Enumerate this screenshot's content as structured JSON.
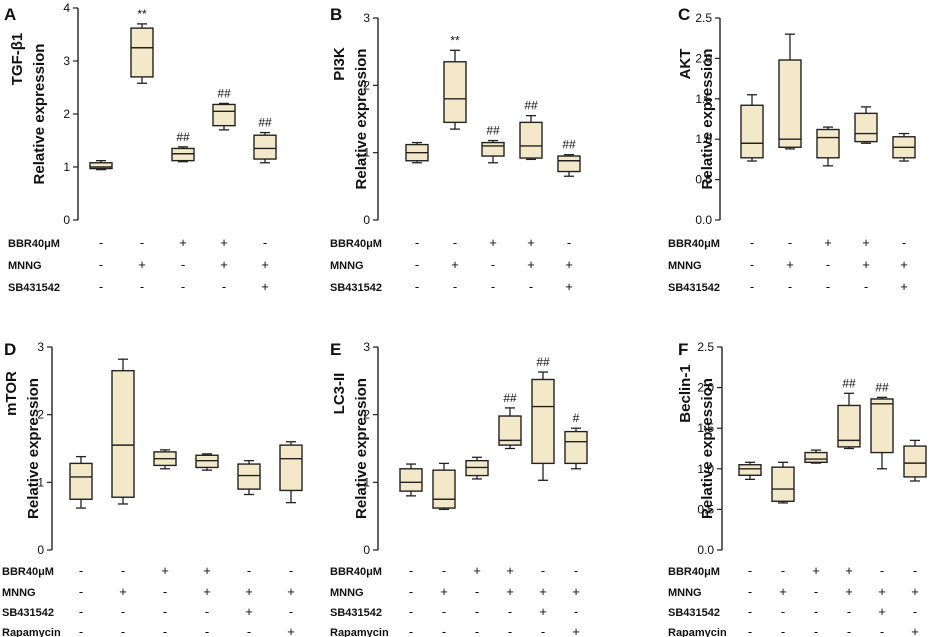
{
  "colors": {
    "box_fill": "#f3e9c8",
    "stroke": "#222222",
    "text": "#111111"
  },
  "chart_data": [
    {
      "panel": "A",
      "type": "box",
      "ylabel_top": "TGF-β1",
      "ylabel": "Relative expression",
      "ylim": [
        0,
        4
      ],
      "yticks": [
        "0",
        "1",
        "2",
        "3",
        "4"
      ],
      "groups": [
        {
          "min": 0.95,
          "q1": 0.97,
          "median": 1.0,
          "q3": 1.08,
          "max": 1.12,
          "sig": ""
        },
        {
          "min": 2.58,
          "q1": 2.7,
          "median": 3.25,
          "q3": 3.62,
          "max": 3.7,
          "sig": "**"
        },
        {
          "min": 1.1,
          "q1": 1.12,
          "median": 1.25,
          "q3": 1.35,
          "max": 1.38,
          "sig": "##"
        },
        {
          "min": 1.7,
          "q1": 1.78,
          "median": 2.05,
          "q3": 2.18,
          "max": 2.2,
          "sig": "##"
        },
        {
          "min": 1.08,
          "q1": 1.15,
          "median": 1.35,
          "q3": 1.6,
          "max": 1.65,
          "sig": "##"
        }
      ],
      "conditions": [
        {
          "label": "BBR40μM",
          "marks": [
            "-",
            "-",
            "+",
            "+",
            "-"
          ]
        },
        {
          "label": "MNNG",
          "marks": [
            "-",
            "+",
            "-",
            "+",
            "+"
          ]
        },
        {
          "label": "SB431542",
          "marks": [
            "-",
            "-",
            "-",
            "-",
            "+"
          ]
        }
      ]
    },
    {
      "panel": "B",
      "type": "box",
      "ylabel_top": "PI3K",
      "ylabel": "Relative expression",
      "ylim": [
        0,
        3
      ],
      "yticks": [
        "0",
        "1",
        "2",
        "3"
      ],
      "groups": [
        {
          "min": 0.85,
          "q1": 0.88,
          "median": 1.0,
          "q3": 1.12,
          "max": 1.15,
          "sig": ""
        },
        {
          "min": 1.35,
          "q1": 1.45,
          "median": 1.8,
          "q3": 2.35,
          "max": 2.52,
          "sig": "**"
        },
        {
          "min": 0.85,
          "q1": 0.95,
          "median": 1.1,
          "q3": 1.15,
          "max": 1.18,
          "sig": "##"
        },
        {
          "min": 0.9,
          "q1": 0.92,
          "median": 1.1,
          "q3": 1.45,
          "max": 1.55,
          "sig": "##"
        },
        {
          "min": 0.65,
          "q1": 0.72,
          "median": 0.88,
          "q3": 0.95,
          "max": 0.97,
          "sig": "##"
        }
      ],
      "conditions": [
        {
          "label": "BBR40μM",
          "marks": [
            "-",
            "-",
            "+",
            "+",
            "-"
          ]
        },
        {
          "label": "MNNG",
          "marks": [
            "-",
            "+",
            "-",
            "+",
            "+"
          ]
        },
        {
          "label": "SB431542",
          "marks": [
            "-",
            "-",
            "-",
            "-",
            "+"
          ]
        }
      ]
    },
    {
      "panel": "C",
      "type": "box",
      "ylabel_top": "AKT",
      "ylabel": "Relative expression",
      "ylim": [
        0,
        2.5
      ],
      "yticks": [
        "0.0",
        "0.5",
        "1.0",
        "1.5",
        "2.0",
        "2.5"
      ],
      "groups": [
        {
          "min": 0.73,
          "q1": 0.77,
          "median": 0.95,
          "q3": 1.42,
          "max": 1.55,
          "sig": ""
        },
        {
          "min": 0.88,
          "q1": 0.9,
          "median": 1.0,
          "q3": 1.98,
          "max": 2.3,
          "sig": ""
        },
        {
          "min": 0.67,
          "q1": 0.77,
          "median": 1.02,
          "q3": 1.12,
          "max": 1.15,
          "sig": ""
        },
        {
          "min": 0.95,
          "q1": 0.97,
          "median": 1.07,
          "q3": 1.32,
          "max": 1.4,
          "sig": ""
        },
        {
          "min": 0.73,
          "q1": 0.77,
          "median": 0.9,
          "q3": 1.03,
          "max": 1.07,
          "sig": ""
        }
      ],
      "conditions": [
        {
          "label": "BBR40μM",
          "marks": [
            "-",
            "-",
            "+",
            "+",
            "-"
          ]
        },
        {
          "label": "MNNG",
          "marks": [
            "-",
            "+",
            "-",
            "+",
            "+"
          ]
        },
        {
          "label": "SB431542",
          "marks": [
            "-",
            "-",
            "-",
            "-",
            "+"
          ]
        }
      ]
    },
    {
      "panel": "D",
      "type": "box",
      "ylabel_top": "mTOR",
      "ylabel": "Relative expression",
      "ylim": [
        0,
        3
      ],
      "yticks": [
        "0",
        "1",
        "2",
        "3"
      ],
      "groups": [
        {
          "min": 0.62,
          "q1": 0.75,
          "median": 1.08,
          "q3": 1.28,
          "max": 1.38,
          "sig": ""
        },
        {
          "min": 0.68,
          "q1": 0.78,
          "median": 1.55,
          "q3": 2.65,
          "max": 2.82,
          "sig": ""
        },
        {
          "min": 1.2,
          "q1": 1.25,
          "median": 1.35,
          "q3": 1.45,
          "max": 1.48,
          "sig": ""
        },
        {
          "min": 1.18,
          "q1": 1.22,
          "median": 1.32,
          "q3": 1.4,
          "max": 1.42,
          "sig": ""
        },
        {
          "min": 0.82,
          "q1": 0.9,
          "median": 1.1,
          "q3": 1.27,
          "max": 1.32,
          "sig": ""
        },
        {
          "min": 0.7,
          "q1": 0.88,
          "median": 1.35,
          "q3": 1.55,
          "max": 1.6,
          "sig": ""
        }
      ],
      "conditions": [
        {
          "label": "BBR40μM",
          "marks": [
            "-",
            "-",
            "+",
            "+",
            "-",
            "-"
          ]
        },
        {
          "label": "MNNG",
          "marks": [
            "-",
            "+",
            "-",
            "+",
            "+",
            "+"
          ]
        },
        {
          "label": "SB431542",
          "marks": [
            "-",
            "-",
            "-",
            "-",
            "+",
            "-"
          ]
        },
        {
          "label": "Rapamycin",
          "marks": [
            "-",
            "-",
            "-",
            "-",
            "-",
            "+"
          ]
        }
      ]
    },
    {
      "panel": "E",
      "type": "box",
      "ylabel_top": "LC3-II",
      "ylabel": "Relative expression",
      "ylim": [
        0,
        3
      ],
      "yticks": [
        "0",
        "1",
        "2",
        "3"
      ],
      "groups": [
        {
          "min": 0.8,
          "q1": 0.87,
          "median": 1.0,
          "q3": 1.2,
          "max": 1.27,
          "sig": ""
        },
        {
          "min": 0.6,
          "q1": 0.62,
          "median": 0.75,
          "q3": 1.18,
          "max": 1.28,
          "sig": ""
        },
        {
          "min": 1.05,
          "q1": 1.1,
          "median": 1.22,
          "q3": 1.32,
          "max": 1.37,
          "sig": ""
        },
        {
          "min": 1.5,
          "q1": 1.55,
          "median": 1.62,
          "q3": 1.98,
          "max": 2.1,
          "sig": "##"
        },
        {
          "min": 1.03,
          "q1": 1.28,
          "median": 2.12,
          "q3": 2.52,
          "max": 2.63,
          "sig": "##"
        },
        {
          "min": 1.2,
          "q1": 1.28,
          "median": 1.6,
          "q3": 1.75,
          "max": 1.8,
          "sig": "#"
        }
      ],
      "conditions": [
        {
          "label": "BBR40μM",
          "marks": [
            "-",
            "-",
            "+",
            "+",
            "-",
            "-"
          ]
        },
        {
          "label": "MNNG",
          "marks": [
            "-",
            "+",
            "-",
            "+",
            "+",
            "+"
          ]
        },
        {
          "label": "SB431542",
          "marks": [
            "-",
            "-",
            "-",
            "-",
            "+",
            "-"
          ]
        },
        {
          "label": "Rapamycin",
          "marks": [
            "-",
            "-",
            "-",
            "-",
            "-",
            "+"
          ]
        }
      ]
    },
    {
      "panel": "F",
      "type": "box",
      "ylabel_top": "Beclin-1",
      "ylabel": "Relative expression",
      "ylim": [
        0,
        2.5
      ],
      "yticks": [
        "0.0",
        "0.5",
        "1.0",
        "1.5",
        "2.0",
        "2.5"
      ],
      "groups": [
        {
          "min": 0.87,
          "q1": 0.92,
          "median": 1.0,
          "q3": 1.05,
          "max": 1.08,
          "sig": ""
        },
        {
          "min": 0.58,
          "q1": 0.6,
          "median": 0.75,
          "q3": 1.02,
          "max": 1.08,
          "sig": ""
        },
        {
          "min": 1.07,
          "q1": 1.08,
          "median": 1.12,
          "q3": 1.2,
          "max": 1.23,
          "sig": ""
        },
        {
          "min": 1.25,
          "q1": 1.27,
          "median": 1.35,
          "q3": 1.78,
          "max": 1.93,
          "sig": "##"
        },
        {
          "min": 1.0,
          "q1": 1.2,
          "median": 1.8,
          "q3": 1.86,
          "max": 1.88,
          "sig": "##"
        },
        {
          "min": 0.85,
          "q1": 0.9,
          "median": 1.07,
          "q3": 1.28,
          "max": 1.35,
          "sig": ""
        }
      ],
      "conditions": [
        {
          "label": "BBR40μM",
          "marks": [
            "-",
            "-",
            "+",
            "+",
            "-",
            "-"
          ]
        },
        {
          "label": "MNNG",
          "marks": [
            "-",
            "+",
            "-",
            "+",
            "+",
            "+"
          ]
        },
        {
          "label": "SB431542",
          "marks": [
            "-",
            "-",
            "-",
            "-",
            "+",
            "-"
          ]
        },
        {
          "label": "Rapamycin",
          "marks": [
            "-",
            "-",
            "-",
            "-",
            "-",
            "+"
          ]
        }
      ]
    }
  ]
}
